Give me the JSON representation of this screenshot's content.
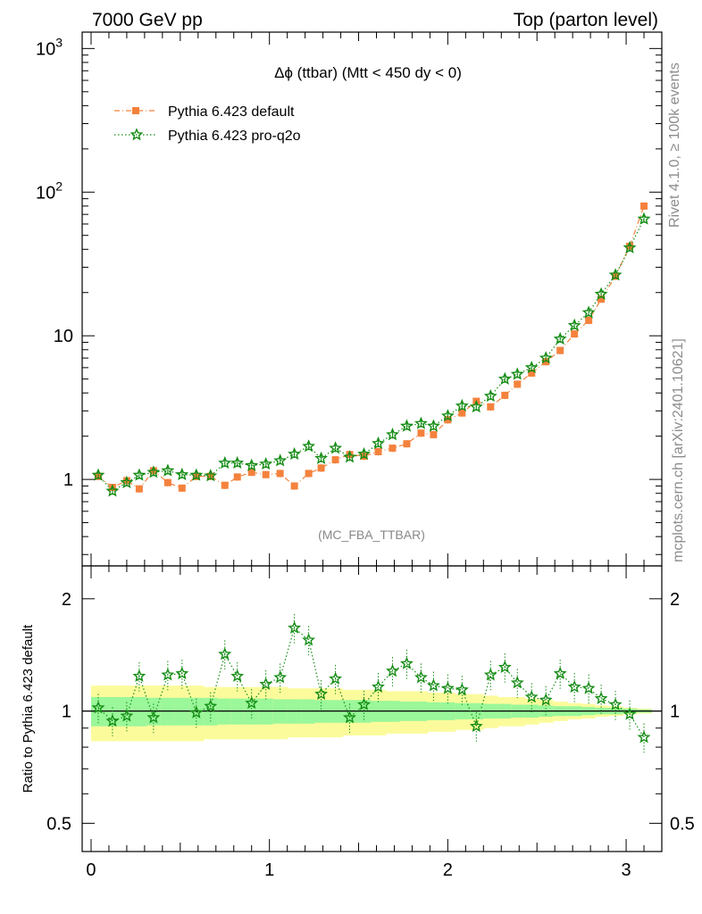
{
  "header": {
    "left": "7000 GeV pp",
    "right": "Top (parton level)"
  },
  "side_labels": {
    "rivet": "Rivet 4.1.0, ≥ 100k events",
    "mcplots": "mcplots.cern.ch [arXiv:2401.10621]"
  },
  "plot_title": {
    "prefix": "Δϕ",
    "text": " (ttbar) (Mtt < 450 dy < 0)"
  },
  "analysis_tag": "(MC_FBA_TTBAR)",
  "ratio_ylabel": "Ratio to Pythia 6.423 default",
  "legend": [
    {
      "name": "Pythia 6.423 default",
      "color": "#f4823c",
      "marker": "square",
      "style": "dash-dot"
    },
    {
      "name": "Pythia 6.423 pro-q2o",
      "color": "#148c14",
      "marker": "star",
      "style": "dotted"
    }
  ],
  "colors": {
    "band_inner": "#9af79a",
    "band_outer": "#fbfb9c",
    "default": "#f4823c",
    "proq2o": "#148c14"
  },
  "chart_data": [
    {
      "type": "line",
      "panel": "main",
      "yscale": "log",
      "ylim": [
        0.25,
        1300
      ],
      "xlim": [
        -0.05,
        3.2
      ],
      "yticks": [
        {
          "value": 1,
          "label": "1"
        },
        {
          "value": 10,
          "label": "10"
        },
        {
          "value": 100,
          "label": "10",
          "sup": "2"
        },
        {
          "value": 1000,
          "label": "10",
          "sup": "3"
        }
      ],
      "x": [
        0.04,
        0.12,
        0.2,
        0.27,
        0.35,
        0.43,
        0.51,
        0.59,
        0.67,
        0.75,
        0.82,
        0.9,
        0.98,
        1.06,
        1.14,
        1.22,
        1.29,
        1.37,
        1.45,
        1.53,
        1.61,
        1.69,
        1.77,
        1.85,
        1.92,
        2.0,
        2.08,
        2.16,
        2.24,
        2.32,
        2.39,
        2.47,
        2.55,
        2.63,
        2.71,
        2.79,
        2.86,
        2.94,
        3.02,
        3.1
      ],
      "series": [
        {
          "name": "Pythia 6.423 default",
          "values": [
            1.05,
            0.88,
            0.98,
            0.86,
            1.15,
            0.95,
            0.87,
            1.05,
            1.05,
            0.91,
            1.04,
            1.12,
            1.08,
            1.1,
            0.9,
            1.1,
            1.2,
            1.37,
            1.49,
            1.45,
            1.56,
            1.65,
            1.77,
            2.1,
            2.05,
            2.6,
            2.9,
            3.5,
            3.2,
            3.85,
            4.6,
            5.5,
            6.6,
            7.9,
            10.3,
            12.8,
            18,
            26,
            42,
            80
          ]
        },
        {
          "name": "Pythia 6.423 pro-q2o",
          "values": [
            1.07,
            0.83,
            0.95,
            1.07,
            1.12,
            1.15,
            1.08,
            1.07,
            1.06,
            1.3,
            1.3,
            1.25,
            1.28,
            1.35,
            1.5,
            1.7,
            1.4,
            1.65,
            1.43,
            1.5,
            1.78,
            2.05,
            2.35,
            2.45,
            2.35,
            2.77,
            3.25,
            3.2,
            3.8,
            5.0,
            5.4,
            6.0,
            7.0,
            9.5,
            11.8,
            14.5,
            19.5,
            26.5,
            41,
            65
          ]
        }
      ]
    },
    {
      "type": "line",
      "panel": "ratio",
      "ylabel": "Ratio to Pythia 6.423 default",
      "yscale": "log",
      "ylim": [
        0.42,
        2.45
      ],
      "yticks": [
        {
          "value": 0.5,
          "label": "0.5"
        },
        {
          "value": 1,
          "label": "1"
        },
        {
          "value": 2,
          "label": "2"
        }
      ],
      "xticks": [
        {
          "value": 0,
          "label": "0"
        },
        {
          "value": 1,
          "label": "1"
        },
        {
          "value": 2,
          "label": "2"
        },
        {
          "value": 3,
          "label": "3"
        }
      ],
      "x": [
        0.04,
        0.12,
        0.2,
        0.27,
        0.35,
        0.43,
        0.51,
        0.59,
        0.67,
        0.75,
        0.82,
        0.9,
        0.98,
        1.06,
        1.14,
        1.22,
        1.29,
        1.37,
        1.45,
        1.53,
        1.61,
        1.69,
        1.77,
        1.85,
        1.92,
        2.0,
        2.08,
        2.16,
        2.24,
        2.32,
        2.39,
        2.47,
        2.55,
        2.63,
        2.71,
        2.79,
        2.86,
        2.94,
        3.02,
        3.1
      ],
      "series": [
        {
          "name": "Pythia 6.423 pro-q2o",
          "values": [
            1.02,
            0.94,
            0.97,
            1.24,
            0.96,
            1.25,
            1.26,
            0.99,
            1.03,
            1.42,
            1.24,
            1.05,
            1.18,
            1.23,
            1.67,
            1.55,
            1.11,
            1.22,
            0.96,
            1.04,
            1.16,
            1.28,
            1.34,
            1.23,
            1.17,
            1.15,
            1.14,
            0.91,
            1.25,
            1.31,
            1.19,
            1.09,
            1.07,
            1.26,
            1.16,
            1.15,
            1.08,
            1.04,
            0.98,
            0.85
          ]
        }
      ],
      "band_rel_inner": [
        0.09,
        0.09,
        0.09,
        0.09,
        0.085,
        0.085,
        0.085,
        0.085,
        0.085,
        0.08,
        0.08,
        0.08,
        0.08,
        0.075,
        0.075,
        0.075,
        0.07,
        0.07,
        0.07,
        0.07,
        0.065,
        0.065,
        0.06,
        0.06,
        0.055,
        0.055,
        0.05,
        0.05,
        0.045,
        0.045,
        0.04,
        0.04,
        0.035,
        0.03,
        0.03,
        0.025,
        0.02,
        0.02,
        0.015,
        0.01
      ],
      "band_rel_outer": [
        0.17,
        0.17,
        0.17,
        0.17,
        0.17,
        0.17,
        0.17,
        0.17,
        0.16,
        0.16,
        0.16,
        0.16,
        0.16,
        0.16,
        0.15,
        0.15,
        0.15,
        0.15,
        0.14,
        0.14,
        0.14,
        0.13,
        0.13,
        0.13,
        0.12,
        0.12,
        0.11,
        0.11,
        0.1,
        0.09,
        0.09,
        0.08,
        0.07,
        0.06,
        0.05,
        0.045,
        0.035,
        0.03,
        0.02,
        0.015
      ]
    }
  ]
}
